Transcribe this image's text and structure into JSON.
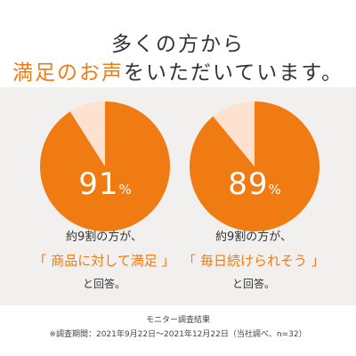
{
  "header": {
    "line1": "多くの方から",
    "line2_accent": "満足のお声",
    "line2_rest": "をいただいています。"
  },
  "colors": {
    "accent": "#f07b12",
    "light": "#fde2cf",
    "panel": "#f1f0ee"
  },
  "chart_data": [
    {
      "type": "pie",
      "values": [
        91,
        9
      ],
      "label": "91",
      "unit": "%",
      "caption_line1": "約9割の方が、",
      "caption_line2": "「 商品に対して満足 」",
      "caption_line3": "と回答。"
    },
    {
      "type": "pie",
      "values": [
        89,
        11
      ],
      "label": "89",
      "unit": "%",
      "caption_line1": "約9割の方が、",
      "caption_line2": "「 毎日続けられそう 」",
      "caption_line3": "と回答。"
    }
  ],
  "footer": {
    "line1": "モニター調査結果",
    "line2": "※調査期間：2021年9月22日～2021年12月22日（当社調べ、n=32）"
  }
}
